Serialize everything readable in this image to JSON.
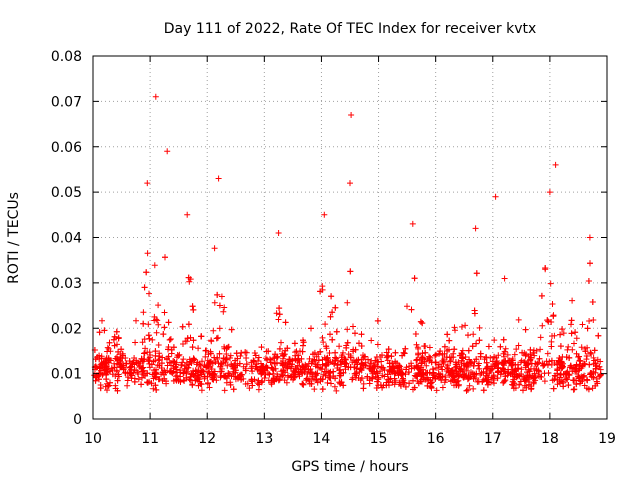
{
  "chart_data": {
    "type": "scatter",
    "title": "Day 111 of 2022, Rate Of TEC Index for receiver kvtx",
    "xlabel": "GPS time / hours",
    "ylabel": "ROTI / TECUs",
    "xlim": [
      10,
      19
    ],
    "ylim": [
      0,
      0.08
    ],
    "grid": true,
    "x_ticks": [
      10,
      11,
      12,
      13,
      14,
      15,
      16,
      17,
      18,
      19
    ],
    "x_tick_labels": [
      "10",
      "11",
      "12",
      "13",
      "14",
      "15",
      "16",
      "17",
      "18",
      "19"
    ],
    "y_ticks": [
      0,
      0.01,
      0.02,
      0.03,
      0.04,
      0.05,
      0.06,
      0.07,
      0.08
    ],
    "y_tick_labels": [
      "0",
      "0.01",
      "0.02",
      "0.03",
      "0.04",
      "0.05",
      "0.06",
      "0.07",
      "0.08"
    ],
    "marker": "+",
    "marker_color": "#ff0000",
    "series": [
      {
        "name": "ROTI",
        "color": "#ff0000",
        "base_level": 0.009,
        "outliers": [
          {
            "x": 11.1,
            "y": 0.071
          },
          {
            "x": 14.52,
            "y": 0.067
          },
          {
            "x": 11.3,
            "y": 0.059
          },
          {
            "x": 18.1,
            "y": 0.056
          },
          {
            "x": 10.95,
            "y": 0.052
          },
          {
            "x": 14.5,
            "y": 0.052
          },
          {
            "x": 12.2,
            "y": 0.053
          },
          {
            "x": 17.05,
            "y": 0.049
          },
          {
            "x": 18.0,
            "y": 0.05
          },
          {
            "x": 11.65,
            "y": 0.045
          },
          {
            "x": 13.25,
            "y": 0.041
          },
          {
            "x": 15.6,
            "y": 0.043
          },
          {
            "x": 16.7,
            "y": 0.042
          },
          {
            "x": 14.05,
            "y": 0.045
          },
          {
            "x": 18.7,
            "y": 0.04
          }
        ]
      }
    ]
  }
}
